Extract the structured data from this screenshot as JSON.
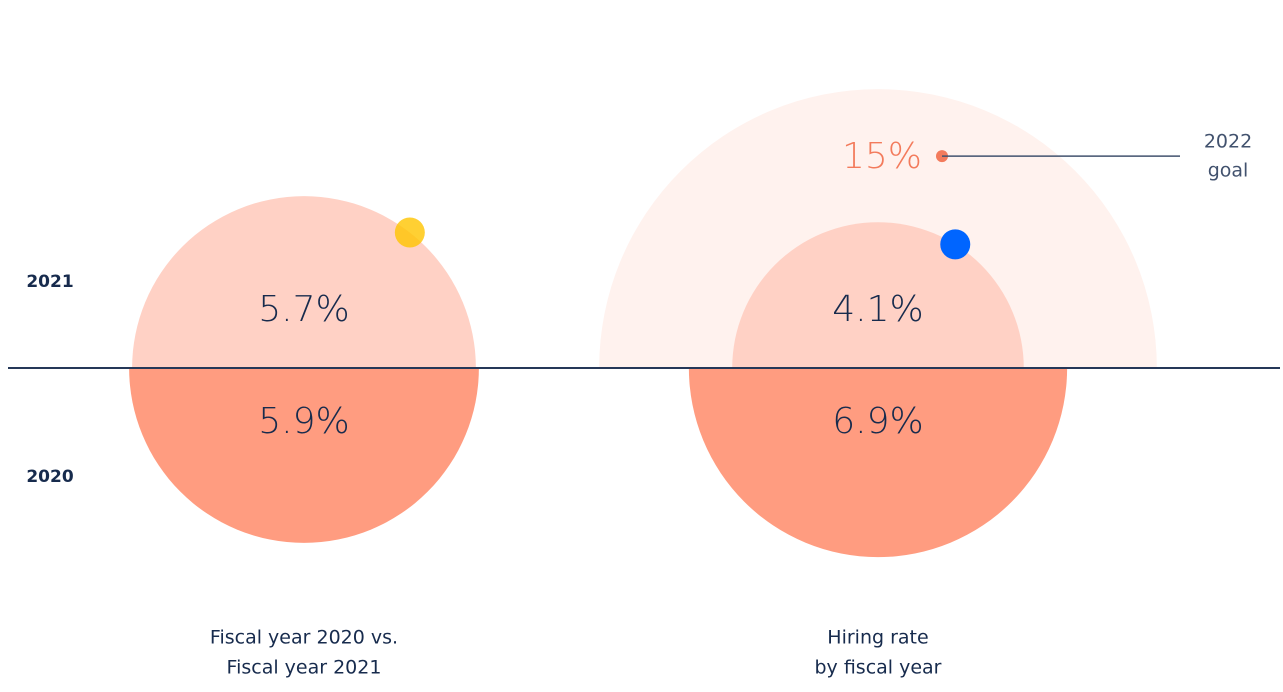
{
  "chart_data": {
    "type": "semicircle",
    "categories": [
      [
        "Fiscal year 2020 vs.",
        "Fiscal year 2021"
      ],
      [
        "Hiring rate",
        "by fiscal year"
      ]
    ],
    "series": [
      {
        "name": "2021",
        "color": "#ffd1c5",
        "position": "top",
        "values": [
          5.7,
          4.1
        ],
        "value_labels": [
          "5.7%",
          "4.1%"
        ]
      },
      {
        "name": "2020",
        "color": "#ff9c80",
        "position": "bottom",
        "values": [
          5.9,
          6.9
        ],
        "value_labels": [
          "5.9%",
          "6.9%"
        ]
      }
    ],
    "goal": {
      "value": 15,
      "label": "15%",
      "name": [
        "2022",
        "goal"
      ],
      "category": 1,
      "color": "#fff2ee",
      "label_color": "#f37b5c"
    }
  }
}
